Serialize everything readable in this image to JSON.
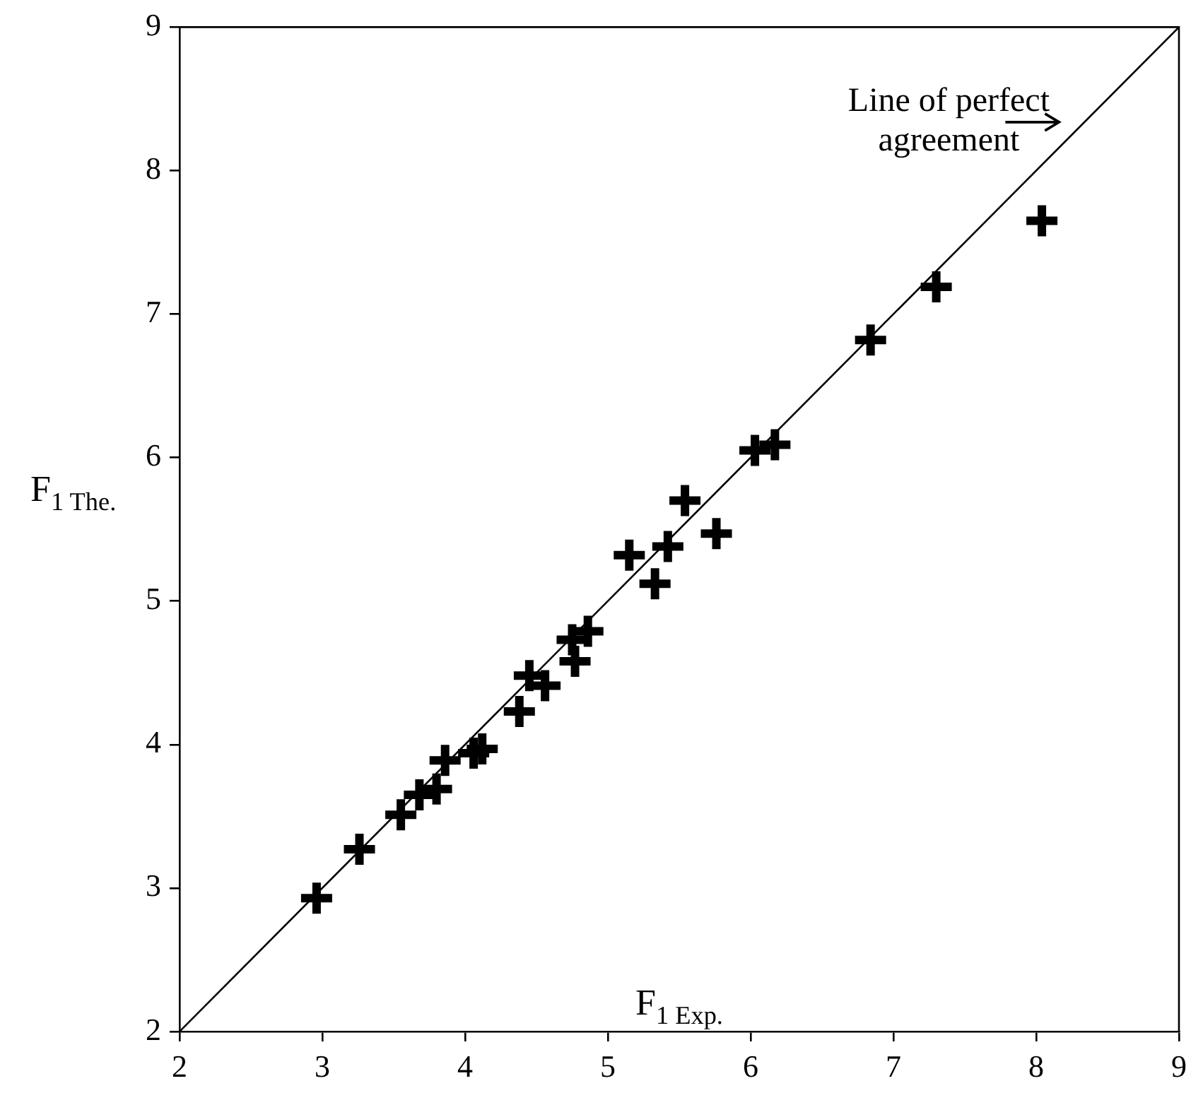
{
  "chart_data": {
    "type": "scatter",
    "xlabel": "F$_{1 Exp.}$",
    "ylabel": "F$_{1 The.}$",
    "xlim": [
      2,
      9
    ],
    "ylim": [
      2,
      9
    ],
    "xticks": [
      2,
      3,
      4,
      5,
      6,
      7,
      8,
      9
    ],
    "yticks": [
      2,
      3,
      4,
      5,
      6,
      7,
      8,
      9
    ],
    "grid": false,
    "legend": false,
    "marker": "cross",
    "series": [
      {
        "type": "scatter",
        "color": "#000000",
        "x": [
          2.96,
          3.26,
          3.55,
          3.68,
          3.8,
          3.86,
          4.06,
          4.12,
          4.38,
          4.45,
          4.56,
          4.77,
          4.75,
          4.86,
          5.15,
          5.42,
          5.33,
          5.54,
          5.76,
          6.03,
          6.17,
          6.84,
          7.3,
          8.04
        ],
        "values": [
          2.93,
          3.27,
          3.51,
          3.65,
          3.69,
          3.89,
          3.94,
          3.97,
          4.23,
          4.48,
          4.41,
          4.58,
          4.73,
          4.79,
          5.32,
          5.38,
          5.12,
          5.7,
          5.47,
          6.05,
          6.09,
          6.82,
          7.19,
          7.65
        ]
      },
      {
        "type": "line",
        "color": "#000000",
        "x": [
          2,
          9
        ],
        "values": [
          2,
          9
        ],
        "line_style": "solid",
        "marker": "none"
      }
    ],
    "annotations": [
      {
        "text": "Line of perfect agreement",
        "x": 8.2,
        "y": 8.2
      }
    ]
  }
}
